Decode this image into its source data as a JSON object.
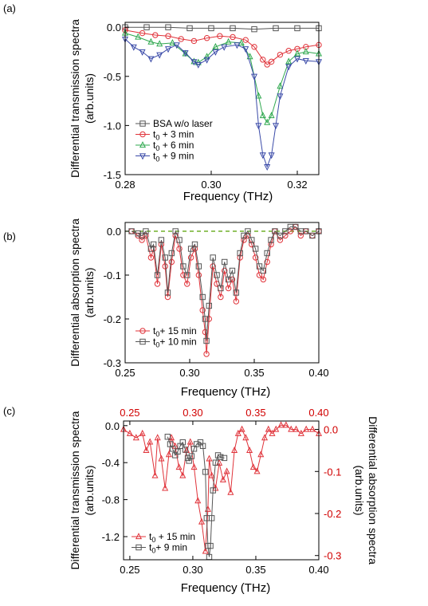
{
  "chart_data": [
    {
      "panel_label": "(a)",
      "type": "line",
      "xlabel": "Frequency (THz)",
      "ylabel_line1": "Differential transmission spectra",
      "ylabel_line2": "(arb.units)",
      "xlim": [
        0.28,
        0.325
      ],
      "ylim": [
        -1.5,
        0.05
      ],
      "xticks": [
        0.28,
        0.3,
        0.32
      ],
      "xtick_labels": [
        "0.28",
        "0.30",
        "0.32"
      ],
      "yticks": [
        0.0,
        -0.5,
        -1.0,
        -1.5
      ],
      "ytick_labels": [
        "0.0",
        "-0.5",
        "-1.0",
        "-1.5"
      ],
      "legend_position": "lower-left",
      "series": [
        {
          "name": "BSA w/o laser",
          "sub": "",
          "suffix": "",
          "color": "#555555",
          "marker": "square",
          "x": [
            0.28,
            0.285,
            0.29,
            0.295,
            0.3,
            0.305,
            0.31,
            0.315,
            0.32,
            0.325
          ],
          "y": [
            0.0,
            0.0,
            0.0,
            -0.01,
            -0.01,
            -0.01,
            -0.02,
            -0.01,
            -0.01,
            -0.01
          ]
        },
        {
          "name": "t",
          "sub": "0",
          "suffix": " +  3 min",
          "color": "#e0333a",
          "marker": "circle",
          "x": [
            0.28,
            0.284,
            0.287,
            0.29,
            0.293,
            0.296,
            0.299,
            0.302,
            0.305,
            0.308,
            0.31,
            0.312,
            0.313,
            0.314,
            0.316,
            0.318,
            0.32,
            0.322,
            0.325
          ],
          "y": [
            -0.03,
            -0.06,
            -0.08,
            -0.09,
            -0.12,
            -0.14,
            -0.11,
            -0.09,
            -0.1,
            -0.13,
            -0.2,
            -0.33,
            -0.38,
            -0.35,
            -0.28,
            -0.24,
            -0.22,
            -0.2,
            -0.18
          ]
        },
        {
          "name": "t",
          "sub": "0",
          "suffix": " +  6 min",
          "color": "#2fa84f",
          "marker": "triangle",
          "x": [
            0.28,
            0.283,
            0.286,
            0.288,
            0.291,
            0.294,
            0.296,
            0.297,
            0.299,
            0.301,
            0.304,
            0.307,
            0.309,
            0.311,
            0.312,
            0.313,
            0.314,
            0.316,
            0.318,
            0.32,
            0.322,
            0.325
          ],
          "y": [
            -0.06,
            -0.1,
            -0.15,
            -0.17,
            -0.16,
            -0.27,
            -0.35,
            -0.36,
            -0.3,
            -0.2,
            -0.15,
            -0.16,
            -0.3,
            -0.7,
            -0.9,
            -0.97,
            -0.9,
            -0.6,
            -0.35,
            -0.27,
            -0.25,
            -0.27
          ]
        },
        {
          "name": "t",
          "sub": "0",
          "suffix": " +  9 min",
          "color": "#3a4aa8",
          "marker": "triangle-down",
          "x": [
            0.28,
            0.282,
            0.284,
            0.286,
            0.288,
            0.29,
            0.292,
            0.294,
            0.296,
            0.297,
            0.299,
            0.301,
            0.303,
            0.306,
            0.308,
            0.31,
            0.311,
            0.312,
            0.313,
            0.314,
            0.315,
            0.316,
            0.318,
            0.32,
            0.322,
            0.325
          ],
          "y": [
            -0.12,
            -0.2,
            -0.25,
            -0.32,
            -0.28,
            -0.22,
            -0.18,
            -0.26,
            -0.35,
            -0.38,
            -0.33,
            -0.25,
            -0.2,
            -0.18,
            -0.22,
            -0.5,
            -1.0,
            -1.3,
            -1.42,
            -1.3,
            -1.0,
            -0.7,
            -0.4,
            -0.32,
            -0.34,
            -0.35
          ]
        }
      ]
    },
    {
      "panel_label": "(b)",
      "type": "line",
      "xlabel": "Frequency (THz)",
      "ylabel_line1": "Differential absorption spectra",
      "ylabel_line2": "(arb.units)",
      "xlim": [
        0.25,
        0.4
      ],
      "ylim": [
        -0.3,
        0.02
      ],
      "xticks": [
        0.25,
        0.3,
        0.35,
        0.4
      ],
      "xtick_labels": [
        "0.25",
        "0.30",
        "0.35",
        "0.40"
      ],
      "yticks": [
        0.0,
        -0.1,
        -0.2,
        -0.3
      ],
      "ytick_labels": [
        "0.0",
        "-0.1",
        "-0.2",
        "-0.3"
      ],
      "legend_position": "lower-left",
      "zero_line_color": "#55a000",
      "series": [
        {
          "name": "t",
          "sub": "0",
          "suffix": "+ 15 min",
          "color": "#e0333a",
          "marker": "circle",
          "x": [
            0.255,
            0.26,
            0.263,
            0.266,
            0.27,
            0.272,
            0.275,
            0.278,
            0.281,
            0.283,
            0.286,
            0.289,
            0.292,
            0.295,
            0.298,
            0.301,
            0.304,
            0.307,
            0.31,
            0.312,
            0.313,
            0.315,
            0.318,
            0.321,
            0.324,
            0.327,
            0.33,
            0.333,
            0.336,
            0.339,
            0.342,
            0.345,
            0.348,
            0.351,
            0.354,
            0.357,
            0.36,
            0.363,
            0.366,
            0.37,
            0.374,
            0.378,
            0.382,
            0.386,
            0.39,
            0.395,
            0.4
          ],
          "y": [
            0.0,
            -0.01,
            -0.02,
            -0.01,
            -0.06,
            -0.04,
            -0.12,
            -0.03,
            -0.08,
            -0.15,
            -0.07,
            -0.01,
            -0.04,
            -0.1,
            -0.12,
            -0.06,
            -0.04,
            -0.1,
            -0.18,
            -0.23,
            -0.28,
            -0.2,
            -0.08,
            -0.12,
            -0.15,
            -0.09,
            -0.13,
            -0.11,
            -0.16,
            -0.06,
            -0.02,
            -0.01,
            -0.03,
            -0.06,
            -0.1,
            -0.11,
            -0.07,
            -0.03,
            0.0,
            -0.02,
            -0.01,
            0.0,
            0.01,
            -0.01,
            0.0,
            -0.01,
            0.0
          ]
        },
        {
          "name": "t",
          "sub": "0",
          "suffix": "+ 10 min",
          "color": "#555555",
          "marker": "square",
          "x": [
            0.255,
            0.26,
            0.263,
            0.266,
            0.27,
            0.272,
            0.275,
            0.278,
            0.281,
            0.283,
            0.286,
            0.289,
            0.292,
            0.295,
            0.298,
            0.301,
            0.304,
            0.307,
            0.31,
            0.312,
            0.313,
            0.315,
            0.318,
            0.321,
            0.324,
            0.327,
            0.33,
            0.333,
            0.336,
            0.339,
            0.342,
            0.345,
            0.348,
            0.351,
            0.354,
            0.357,
            0.36,
            0.363,
            0.366,
            0.37,
            0.374,
            0.378,
            0.382,
            0.386,
            0.39,
            0.395,
            0.4
          ],
          "y": [
            0.0,
            -0.005,
            -0.01,
            0.0,
            -0.04,
            -0.03,
            -0.1,
            -0.02,
            -0.06,
            -0.14,
            -0.05,
            0.0,
            -0.02,
            -0.08,
            -0.1,
            -0.04,
            -0.03,
            -0.08,
            -0.15,
            -0.2,
            -0.25,
            -0.17,
            -0.06,
            -0.1,
            -0.13,
            -0.07,
            -0.11,
            -0.09,
            -0.14,
            -0.05,
            -0.01,
            0.0,
            -0.02,
            -0.04,
            -0.08,
            -0.09,
            -0.05,
            -0.02,
            0.0,
            -0.01,
            0.0,
            0.01,
            0.01,
            0.0,
            0.0,
            -0.01,
            0.0
          ]
        }
      ]
    },
    {
      "panel_label": "(c)",
      "type": "line",
      "xlabel": "Frequency (THz)",
      "ylabel_line1": "Differential transmission spectra",
      "ylabel_line2": "(arb.units)",
      "right_ylabel_line1": "Differential absorption spectra",
      "right_ylabel_line2": "(arb.units)",
      "xlim": [
        0.245,
        0.4
      ],
      "ylim_left": [
        -1.45,
        0.05
      ],
      "ylim_right": [
        -0.31,
        0.02
      ],
      "xticks": [
        0.25,
        0.3,
        0.35,
        0.4
      ],
      "xtick_labels": [
        "0.25",
        "0.30",
        "0.35",
        "0.40"
      ],
      "top_xtick_labels": [
        "0.25",
        "0.30",
        "0.35",
        "0.40"
      ],
      "top_axis_color": "#d10000",
      "yticks_left": [
        0.0,
        -0.4,
        -0.8,
        -1.2
      ],
      "ytick_labels_left": [
        "0.0",
        "-0.4",
        "-0.8",
        "-1.2"
      ],
      "yticks_right": [
        0.0,
        -0.1,
        -0.2,
        -0.3
      ],
      "ytick_labels_right": [
        "0.0",
        "-0.1",
        "-0.2",
        "-0.3"
      ],
      "right_axis_color": "#d10000",
      "legend_position": "lower-left",
      "series": [
        {
          "name": "t",
          "sub": "0",
          "suffix": " + 15 min",
          "color": "#e0333a",
          "marker": "triangle",
          "axis": "right",
          "x": [
            0.245,
            0.25,
            0.255,
            0.26,
            0.263,
            0.266,
            0.27,
            0.272,
            0.275,
            0.278,
            0.281,
            0.283,
            0.286,
            0.289,
            0.292,
            0.295,
            0.298,
            0.301,
            0.304,
            0.307,
            0.31,
            0.312,
            0.313,
            0.315,
            0.318,
            0.321,
            0.324,
            0.327,
            0.33,
            0.333,
            0.336,
            0.339,
            0.342,
            0.345,
            0.348,
            0.351,
            0.354,
            0.357,
            0.36,
            0.363,
            0.366,
            0.37,
            0.374,
            0.378,
            0.382,
            0.386,
            0.39,
            0.395,
            0.4
          ],
          "y": [
            0.0,
            -0.01,
            -0.02,
            -0.01,
            -0.05,
            -0.03,
            -0.11,
            -0.02,
            -0.07,
            -0.14,
            -0.06,
            -0.02,
            -0.04,
            -0.09,
            -0.11,
            -0.05,
            -0.03,
            -0.09,
            -0.17,
            -0.22,
            -0.29,
            -0.19,
            -0.07,
            -0.11,
            -0.14,
            -0.08,
            -0.12,
            -0.1,
            -0.15,
            -0.05,
            -0.01,
            0.0,
            -0.02,
            -0.05,
            -0.09,
            -0.1,
            -0.06,
            -0.02,
            0.0,
            -0.01,
            0.0,
            0.01,
            0.01,
            0.0,
            0.0,
            -0.01,
            0.0,
            0.0,
            -0.01
          ]
        },
        {
          "name": "t",
          "sub": "0",
          "suffix": "+  9 min",
          "color": "#555555",
          "marker": "square",
          "axis": "left",
          "x": [
            0.28,
            0.282,
            0.284,
            0.286,
            0.288,
            0.29,
            0.292,
            0.294,
            0.296,
            0.297,
            0.299,
            0.301,
            0.303,
            0.306,
            0.308,
            0.31,
            0.311,
            0.312,
            0.313,
            0.314,
            0.315,
            0.316,
            0.318,
            0.32,
            0.322,
            0.325
          ],
          "y": [
            -0.12,
            -0.2,
            -0.25,
            -0.32,
            -0.28,
            -0.22,
            -0.18,
            -0.26,
            -0.35,
            -0.38,
            -0.33,
            -0.25,
            -0.2,
            -0.18,
            -0.22,
            -0.5,
            -1.0,
            -1.3,
            -1.42,
            -1.3,
            -1.0,
            -0.7,
            -0.4,
            -0.32,
            -0.34,
            -0.35
          ]
        }
      ]
    }
  ]
}
